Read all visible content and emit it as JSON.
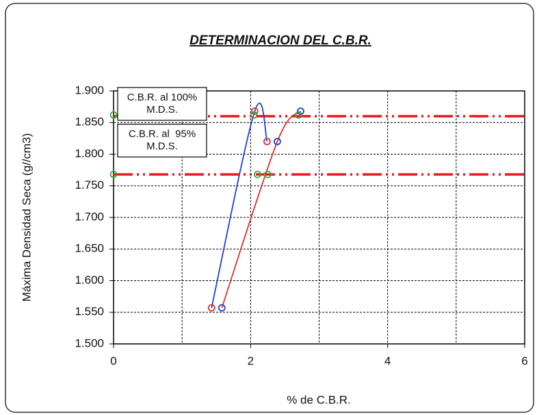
{
  "chart_data": {
    "type": "line",
    "title": "DETERMINACION DEL C.B.R.",
    "x_label": "% de C.B.R.",
    "y_label": "Máxima Densidad Seca (g//cm3)",
    "xlim": [
      0,
      6
    ],
    "xticks": [
      0,
      2,
      4,
      6
    ],
    "x_grid": [
      1,
      2,
      3,
      4,
      5
    ],
    "ylim": [
      1.5,
      1.9
    ],
    "yticks": [
      {
        "value": 1.5,
        "label": "1.500"
      },
      {
        "value": 1.55,
        "label": "1.550"
      },
      {
        "value": 1.6,
        "label": "1.600"
      },
      {
        "value": 1.65,
        "label": "1.650"
      },
      {
        "value": 1.7,
        "label": "1.700"
      },
      {
        "value": 1.75,
        "label": "1.750"
      },
      {
        "value": 1.8,
        "label": "1.800"
      },
      {
        "value": 1.85,
        "label": "1.850"
      },
      {
        "value": 1.9,
        "label": "1.900"
      }
    ],
    "grid": true,
    "series": [
      {
        "color": "#1f3fd6",
        "marker_color": "#e03030",
        "x": [
          1.43,
          2.06,
          2.24
        ],
        "values": [
          1.557,
          1.868,
          1.82
        ]
      },
      {
        "color": "#e03030",
        "marker_color": "#1f3fd6",
        "x": [
          1.58,
          2.39,
          2.73
        ],
        "values": [
          1.557,
          1.82,
          1.868
        ]
      },
      {
        "color": "none",
        "marker_color": "#3aa63a",
        "x": [
          0,
          2.05,
          2.7
        ],
        "values": [
          1.862,
          1.862,
          1.862
        ]
      },
      {
        "color": "none",
        "marker_color": "#3aa63a",
        "x": [
          0,
          2.1,
          2.25
        ],
        "values": [
          1.768,
          1.768,
          1.768
        ]
      }
    ],
    "reference_lines": [
      {
        "value": 1.86,
        "color": "#e8161b"
      },
      {
        "value": 1.768,
        "color": "#e8161b"
      }
    ],
    "annotations": [
      {
        "lines": [
          "C.B.R. al 100%",
          "M.D.S."
        ],
        "y": 1.9
      },
      {
        "lines": [
          "C.B.R. al  95%",
          "M.D.S."
        ],
        "y": 1.842
      }
    ]
  }
}
